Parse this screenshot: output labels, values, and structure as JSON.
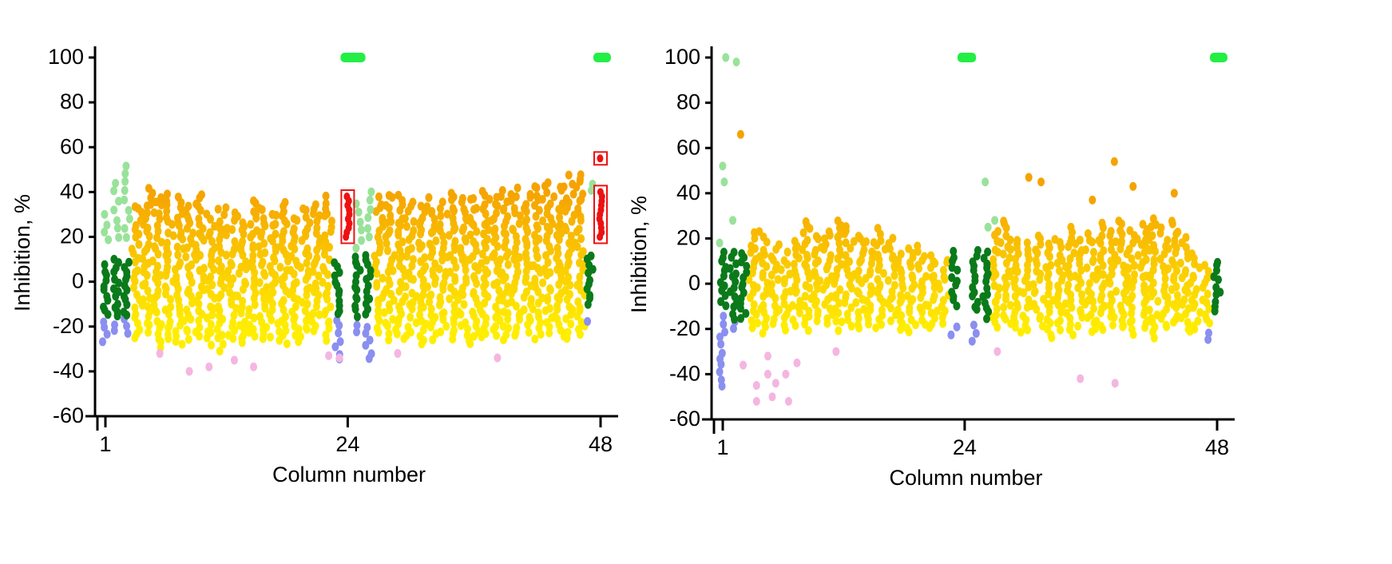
{
  "chart_data": [
    {
      "type": "scatter",
      "xlabel": "Column number",
      "ylabel": "Inhibition, %",
      "xlim": [
        1,
        48
      ],
      "ylim": [
        -60,
        100
      ],
      "xticks": [
        "1",
        "24",
        "48"
      ],
      "yticks": [
        "100",
        "80",
        "60",
        "40",
        "20",
        "0",
        "-20",
        "-40",
        "-60"
      ],
      "grid": false,
      "colors": {
        "low": "#ffee00",
        "high": "#f5a300",
        "neg_control": "#0a7a1a",
        "light_green": "#99e29a",
        "blue": "#8a8ff0",
        "pink": "#f4b6e0",
        "red": "#ee1111",
        "pos_control": "#22ee44"
      },
      "sample_columns": [
        [
          4,
          -25,
          35
        ],
        [
          5,
          -22,
          44
        ],
        [
          6,
          -30,
          40
        ],
        [
          7,
          -26,
          42
        ],
        [
          8,
          -28,
          38
        ],
        [
          9,
          -25,
          36
        ],
        [
          10,
          -24,
          40
        ],
        [
          11,
          -28,
          30
        ],
        [
          12,
          -30,
          35
        ],
        [
          13,
          -26,
          32
        ],
        [
          14,
          -28,
          30
        ],
        [
          15,
          -25,
          38
        ],
        [
          16,
          -26,
          34
        ],
        [
          17,
          -24,
          32
        ],
        [
          18,
          -28,
          36
        ],
        [
          19,
          -26,
          30
        ],
        [
          20,
          -24,
          35
        ],
        [
          21,
          -22,
          36
        ],
        [
          22,
          -26,
          38
        ],
        [
          27,
          -22,
          38
        ],
        [
          28,
          -25,
          40
        ],
        [
          29,
          -26,
          38
        ],
        [
          30,
          -24,
          36
        ],
        [
          31,
          -28,
          34
        ],
        [
          32,
          -25,
          38
        ],
        [
          33,
          -22,
          36
        ],
        [
          34,
          -26,
          40
        ],
        [
          35,
          -24,
          38
        ],
        [
          36,
          -28,
          40
        ],
        [
          37,
          -25,
          42
        ],
        [
          38,
          -24,
          38
        ],
        [
          39,
          -26,
          40
        ],
        [
          40,
          -24,
          42
        ],
        [
          41,
          -22,
          40
        ],
        [
          42,
          -25,
          44
        ],
        [
          43,
          -22,
          46
        ],
        [
          44,
          -24,
          44
        ],
        [
          45,
          -26,
          48
        ],
        [
          46,
          -24,
          50
        ]
      ],
      "neg_control_columns": [
        [
          1,
          -15,
          8
        ],
        [
          2,
          -16,
          12
        ],
        [
          3,
          -15,
          10
        ],
        [
          23,
          -15,
          10
        ],
        [
          25,
          -15,
          12
        ],
        [
          26,
          -15,
          12
        ],
        [
          47,
          -10,
          12
        ]
      ],
      "light_green_columns": [
        [
          1,
          18,
          32
        ],
        [
          2,
          20,
          45
        ],
        [
          3,
          20,
          55
        ],
        [
          25,
          15,
          35
        ],
        [
          26,
          20,
          42
        ],
        [
          47,
          40,
          47
        ]
      ],
      "blue_columns": [
        [
          1,
          -27,
          -17
        ],
        [
          2,
          -22,
          -17
        ],
        [
          3,
          -23,
          -17
        ],
        [
          23,
          -35,
          -17
        ],
        [
          25,
          -22,
          -17
        ],
        [
          26,
          -35,
          -20
        ],
        [
          47,
          -17,
          -17
        ]
      ],
      "pink_points": [
        [
          6,
          -32
        ],
        [
          9,
          -40
        ],
        [
          11,
          -38
        ],
        [
          13,
          -35
        ],
        [
          15,
          -38
        ],
        [
          22,
          -33
        ],
        [
          23,
          -34
        ],
        [
          29,
          -32
        ],
        [
          38,
          -34
        ]
      ],
      "orange_points": [],
      "light_green_points": [],
      "red_boxed_columns": [
        [
          24,
          20,
          38
        ],
        [
          48,
          20,
          40
        ],
        [
          48,
          55,
          55
        ]
      ],
      "pos_control_points": [
        [
          24,
          100
        ],
        [
          24.5,
          100
        ],
        [
          25,
          100
        ],
        [
          48,
          100
        ],
        [
          48.3,
          100
        ]
      ]
    },
    {
      "type": "scatter",
      "xlabel": "Column number",
      "ylabel": "Inhibition, %",
      "xlim": [
        1,
        48
      ],
      "ylim": [
        -60,
        100
      ],
      "xticks": [
        "1",
        "24",
        "48"
      ],
      "yticks": [
        "100",
        "80",
        "60",
        "40",
        "20",
        "0",
        "-20",
        "-40",
        "-60"
      ],
      "grid": false,
      "colors": {
        "low": "#ffee00",
        "high": "#f5a300",
        "neg_control": "#0a7a1a",
        "light_green": "#99e29a",
        "blue": "#8a8ff0",
        "pink": "#f4b6e0",
        "red": "#ee1111",
        "pos_control": "#22ee44"
      },
      "sample_columns": [
        [
          4,
          -20,
          25
        ],
        [
          5,
          -22,
          20
        ],
        [
          6,
          -18,
          18
        ],
        [
          7,
          -20,
          15
        ],
        [
          8,
          -18,
          20
        ],
        [
          9,
          -20,
          30
        ],
        [
          10,
          -16,
          22
        ],
        [
          11,
          -18,
          25
        ],
        [
          12,
          -20,
          30
        ],
        [
          13,
          -18,
          28
        ],
        [
          14,
          -20,
          22
        ],
        [
          15,
          -18,
          20
        ],
        [
          16,
          -20,
          25
        ],
        [
          17,
          -16,
          20
        ],
        [
          18,
          -20,
          15
        ],
        [
          19,
          -22,
          18
        ],
        [
          20,
          -18,
          16
        ],
        [
          21,
          -20,
          15
        ],
        [
          22,
          -18,
          12
        ],
        [
          27,
          -20,
          25
        ],
        [
          28,
          -18,
          30
        ],
        [
          29,
          -22,
          20
        ],
        [
          30,
          -20,
          18
        ],
        [
          31,
          -18,
          22
        ],
        [
          32,
          -24,
          18
        ],
        [
          33,
          -20,
          20
        ],
        [
          34,
          -22,
          25
        ],
        [
          35,
          -18,
          20
        ],
        [
          36,
          -22,
          22
        ],
        [
          37,
          -20,
          28
        ],
        [
          38,
          -18,
          25
        ],
        [
          39,
          -20,
          30
        ],
        [
          40,
          -22,
          25
        ],
        [
          41,
          -20,
          28
        ],
        [
          42,
          -24,
          30
        ],
        [
          43,
          -20,
          25
        ],
        [
          44,
          -18,
          30
        ],
        [
          45,
          -22,
          20
        ],
        [
          46,
          -20,
          15
        ],
        [
          47,
          -18,
          10
        ]
      ],
      "neg_control_columns": [
        [
          1,
          -10,
          15
        ],
        [
          2,
          -15,
          15
        ],
        [
          3,
          -15,
          15
        ],
        [
          23,
          -10,
          15
        ],
        [
          25,
          -12,
          15
        ],
        [
          26,
          -15,
          15
        ],
        [
          48,
          -12,
          10
        ]
      ],
      "light_green_columns": [],
      "blue_columns": [
        [
          1,
          -45,
          -15
        ],
        [
          2,
          -20,
          -15
        ],
        [
          23,
          -22,
          -18
        ],
        [
          25,
          -25,
          -18
        ],
        [
          47,
          -25,
          -20
        ]
      ],
      "pink_points": [
        [
          3,
          -36
        ],
        [
          4,
          -52
        ],
        [
          4,
          -45
        ],
        [
          5,
          -40
        ],
        [
          5,
          -32
        ],
        [
          6,
          -50
        ],
        [
          6,
          -44
        ],
        [
          7,
          -52
        ],
        [
          7,
          -40
        ],
        [
          8,
          -35
        ],
        [
          12,
          -30
        ],
        [
          27,
          -30
        ],
        [
          35,
          -42
        ],
        [
          38,
          -44
        ]
      ],
      "orange_points": [
        [
          3,
          66
        ],
        [
          30,
          47
        ],
        [
          31,
          45
        ],
        [
          38,
          54
        ],
        [
          40,
          43
        ],
        [
          44,
          40
        ],
        [
          36,
          37
        ]
      ],
      "light_green_points": [
        [
          1,
          52
        ],
        [
          1,
          45
        ],
        [
          1,
          100
        ],
        [
          2,
          98
        ],
        [
          2,
          28
        ],
        [
          1,
          18
        ],
        [
          26,
          45
        ],
        [
          26,
          25
        ],
        [
          27,
          28
        ]
      ],
      "red_boxed_columns": [],
      "pos_control_points": [
        [
          24,
          100
        ],
        [
          24.4,
          100
        ],
        [
          48,
          100
        ],
        [
          48.3,
          100
        ]
      ]
    }
  ]
}
